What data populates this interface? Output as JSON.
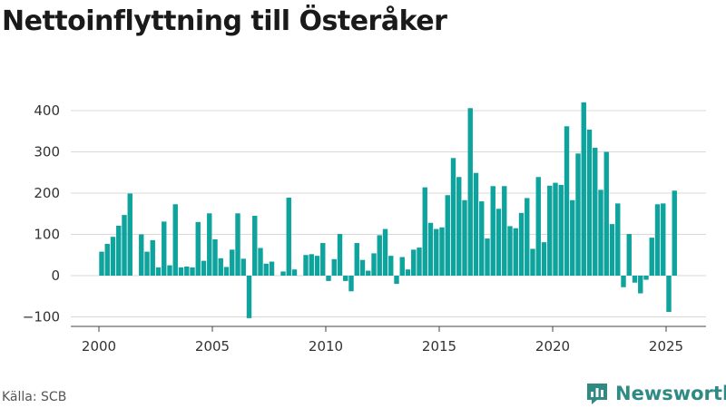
{
  "title": "Nettoinflyttning till Österåker",
  "source": "Källa: SCB",
  "brand": {
    "name": "Newsworthy",
    "color": "#2f8a84"
  },
  "chart_data": {
    "type": "bar",
    "title": "Nettoinflyttning till Österåker",
    "xlabel": "",
    "ylabel": "",
    "bar_color": "#0fa39e",
    "ylim": [
      -110,
      440
    ],
    "xlim": [
      1998.7,
      2026.8
    ],
    "y_ticks": [
      -100,
      0,
      100,
      200,
      300,
      400
    ],
    "x_ticks": [
      2000,
      2005,
      2010,
      2015,
      2020,
      2025
    ],
    "grid": "horizontal",
    "legend": "none",
    "x": [
      "2000 K1",
      "2000 K2",
      "2000 K3",
      "2000 K4",
      "2001 K1",
      "2001 K2",
      "2001 K3",
      "2001 K4",
      "2002 K1",
      "2002 K2",
      "2002 K3",
      "2002 K4",
      "2003 K1",
      "2003 K2",
      "2003 K3",
      "2003 K4",
      "2004 K1",
      "2004 K2",
      "2004 K3",
      "2004 K4",
      "2005 K1",
      "2005 K2",
      "2005 K3",
      "2005 K4",
      "2006 K1",
      "2006 K2",
      "2006 K3",
      "2006 K4",
      "2007 K1",
      "2007 K2",
      "2007 K3",
      "2007 K4",
      "2008 K1",
      "2008 K2",
      "2008 K3",
      "2008 K4",
      "2009 K1",
      "2009 K2",
      "2009 K3",
      "2009 K4",
      "2010 K1",
      "2010 K2",
      "2010 K3",
      "2010 K4",
      "2011 K1",
      "2011 K2",
      "2011 K3",
      "2011 K4",
      "2012 K1",
      "2012 K2",
      "2012 K3",
      "2012 K4",
      "2013 K1",
      "2013 K2",
      "2013 K3",
      "2013 K4",
      "2014 K1",
      "2014 K2",
      "2014 K3",
      "2014 K4",
      "2015 K1",
      "2015 K2",
      "2015 K3",
      "2015 K4",
      "2016 K1",
      "2016 K2",
      "2016 K3",
      "2016 K4",
      "2017 K1",
      "2017 K2",
      "2017 K3",
      "2017 K4",
      "2018 K1",
      "2018 K2",
      "2018 K3",
      "2018 K4",
      "2019 K1",
      "2019 K2",
      "2019 K3",
      "2019 K4",
      "2020 K1",
      "2020 K2",
      "2020 K3",
      "2020 K4",
      "2021 K1",
      "2021 K2",
      "2021 K3",
      "2021 K4",
      "2022 K1",
      "2022 K2",
      "2022 K3",
      "2022 K4",
      "2023 K1",
      "2023 K2",
      "2023 K3",
      "2023 K4",
      "2024 K1",
      "2024 K2",
      "2024 K3",
      "2024 K4",
      "2025 K1",
      "2025 K2"
    ],
    "values": [
      58,
      77,
      94,
      121,
      147,
      199,
      0,
      100,
      58,
      86,
      20,
      131,
      25,
      173,
      20,
      22,
      20,
      130,
      36,
      151,
      88,
      42,
      21,
      63,
      151,
      41,
      -103,
      145,
      67,
      29,
      34,
      0,
      10,
      189,
      15,
      0,
      50,
      52,
      48,
      79,
      -13,
      40,
      101,
      -13,
      -38,
      79,
      38,
      12,
      54,
      98,
      113,
      48,
      -20,
      45,
      15,
      63,
      68,
      214,
      128,
      113,
      117,
      195,
      285,
      239,
      183,
      406,
      249,
      180,
      90,
      217,
      162,
      217,
      120,
      115,
      152,
      188,
      65,
      239,
      81,
      218,
      225,
      220,
      362,
      183,
      296,
      420,
      354,
      310,
      208,
      300,
      125,
      175,
      -28,
      101,
      -17,
      -43,
      -10,
      92,
      173,
      175,
      -88,
      206
    ]
  }
}
